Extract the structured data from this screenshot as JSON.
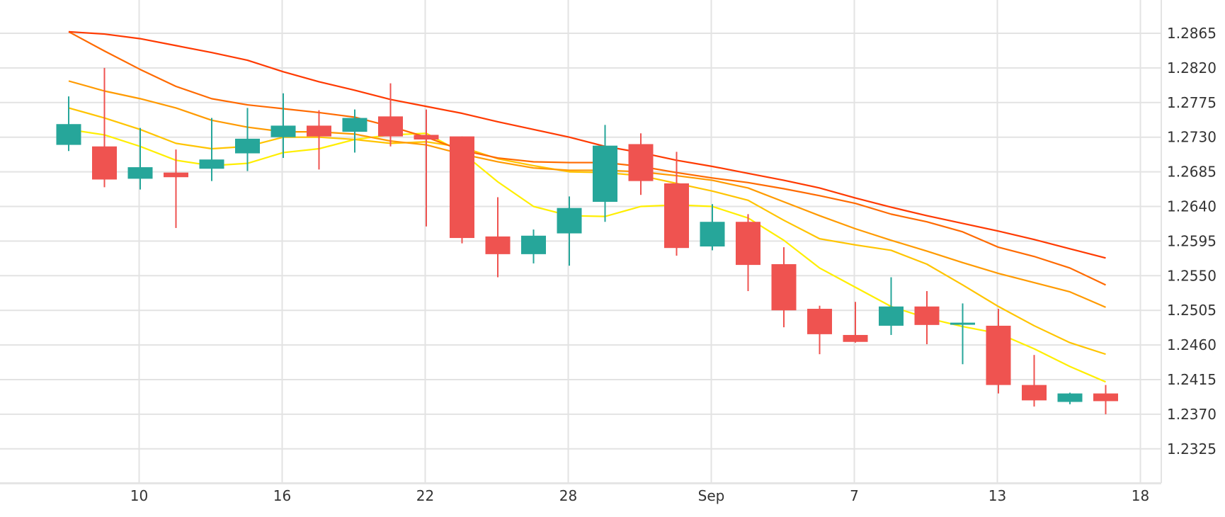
{
  "chart_data": {
    "type": "candlestick",
    "title": "",
    "xlabel": "",
    "ylabel": "",
    "ylim": [
      1.228,
      1.291
    ],
    "y_ticks": [
      1.2325,
      1.237,
      1.2415,
      1.246,
      1.2505,
      1.255,
      1.2595,
      1.264,
      1.2685,
      1.273,
      1.2775,
      1.282,
      1.2865
    ],
    "y_tick_labels": [
      "1.2325",
      "1.2370",
      "1.2415",
      "1.2460",
      "1.2505",
      "1.2550",
      "1.2595",
      "1.2640",
      "1.2685",
      "1.2730",
      "1.2775",
      "1.2820",
      "1.2865"
    ],
    "x_ticks": [
      {
        "index": 1,
        "label": "10"
      },
      {
        "index": 5,
        "label": "16"
      },
      {
        "index": 9,
        "label": "22"
      },
      {
        "index": 13,
        "label": "28"
      },
      {
        "index": 17,
        "label": "Sep"
      },
      {
        "index": 21,
        "label": "7"
      },
      {
        "index": 25,
        "label": "13"
      },
      {
        "index": 29,
        "label": "18"
      }
    ],
    "candles": [
      {
        "open": 1.272,
        "high": 1.2783,
        "low": 1.2712,
        "close": 1.2747
      },
      {
        "open": 1.2718,
        "high": 1.282,
        "low": 1.2665,
        "close": 1.2675
      },
      {
        "open": 1.2676,
        "high": 1.2742,
        "low": 1.2662,
        "close": 1.2691
      },
      {
        "open": 1.2684,
        "high": 1.2714,
        "low": 1.2612,
        "close": 1.2678
      },
      {
        "open": 1.2689,
        "high": 1.2755,
        "low": 1.2673,
        "close": 1.2701
      },
      {
        "open": 1.2709,
        "high": 1.2768,
        "low": 1.2686,
        "close": 1.2728
      },
      {
        "open": 1.273,
        "high": 1.2787,
        "low": 1.2703,
        "close": 1.2745
      },
      {
        "open": 1.2745,
        "high": 1.2765,
        "low": 1.2688,
        "close": 1.2731
      },
      {
        "open": 1.2737,
        "high": 1.2766,
        "low": 1.271,
        "close": 1.2755
      },
      {
        "open": 1.2757,
        "high": 1.28,
        "low": 1.2718,
        "close": 1.2731
      },
      {
        "open": 1.2733,
        "high": 1.2766,
        "low": 1.2614,
        "close": 1.2727
      },
      {
        "open": 1.2731,
        "high": 1.2731,
        "low": 1.2592,
        "close": 1.2599
      },
      {
        "open": 1.2601,
        "high": 1.2652,
        "low": 1.2548,
        "close": 1.2578
      },
      {
        "open": 1.2578,
        "high": 1.261,
        "low": 1.2566,
        "close": 1.2602
      },
      {
        "open": 1.2605,
        "high": 1.2653,
        "low": 1.2563,
        "close": 1.2638
      },
      {
        "open": 1.2646,
        "high": 1.2746,
        "low": 1.262,
        "close": 1.2719
      },
      {
        "open": 1.2721,
        "high": 1.2735,
        "low": 1.2655,
        "close": 1.2673
      },
      {
        "open": 1.267,
        "high": 1.2711,
        "low": 1.2576,
        "close": 1.2586
      },
      {
        "open": 1.2588,
        "high": 1.2643,
        "low": 1.2583,
        "close": 1.262
      },
      {
        "open": 1.262,
        "high": 1.263,
        "low": 1.253,
        "close": 1.2564
      },
      {
        "open": 1.2565,
        "high": 1.2587,
        "low": 1.2483,
        "close": 1.2505
      },
      {
        "open": 1.2507,
        "high": 1.2511,
        "low": 1.2448,
        "close": 1.2474
      },
      {
        "open": 1.2473,
        "high": 1.2516,
        "low": 1.2463,
        "close": 1.2464
      },
      {
        "open": 1.2485,
        "high": 1.2548,
        "low": 1.2473,
        "close": 1.251
      },
      {
        "open": 1.251,
        "high": 1.253,
        "low": 1.2461,
        "close": 1.2486
      },
      {
        "open": 1.2487,
        "high": 1.2514,
        "low": 1.2435,
        "close": 1.2489
      },
      {
        "open": 1.2485,
        "high": 1.2507,
        "low": 1.2397,
        "close": 1.2408
      },
      {
        "open": 1.2408,
        "high": 1.2447,
        "low": 1.238,
        "close": 1.2388
      },
      {
        "open": 1.2386,
        "high": 1.2398,
        "low": 1.2383,
        "close": 1.2397
      },
      {
        "open": 1.2397,
        "high": 1.2408,
        "low": 1.237,
        "close": 1.2387
      }
    ],
    "overlays": [
      {
        "color": "#ffee00",
        "values": [
          1.274,
          1.2733,
          1.2718,
          1.27,
          1.2693,
          1.2696,
          1.271,
          1.2715,
          1.2727,
          1.2733,
          1.2735,
          1.271,
          1.2672,
          1.264,
          1.2628,
          1.2627,
          1.264,
          1.2642,
          1.264,
          1.2625,
          1.2596,
          1.256,
          1.2535,
          1.251,
          1.2495,
          1.2484,
          1.2475,
          1.2455,
          1.2432,
          1.2412
        ]
      },
      {
        "color": "#ffc400",
        "values": [
          1.2768,
          1.2755,
          1.274,
          1.2722,
          1.2715,
          1.2718,
          1.273,
          1.273,
          1.2727,
          1.2722,
          1.2724,
          1.2717,
          1.2702,
          1.2693,
          1.2685,
          1.2684,
          1.268,
          1.267,
          1.266,
          1.2648,
          1.2622,
          1.2598,
          1.259,
          1.2583,
          1.2565,
          1.2538,
          1.251,
          1.2485,
          1.2463,
          1.2448
        ]
      },
      {
        "color": "#ff9a00",
        "values": [
          1.2803,
          1.279,
          1.278,
          1.2768,
          1.2752,
          1.2743,
          1.2737,
          1.2737,
          1.2734,
          1.2725,
          1.272,
          1.2708,
          1.2698,
          1.269,
          1.2687,
          1.2687,
          1.2685,
          1.268,
          1.2674,
          1.2664,
          1.2646,
          1.2628,
          1.2611,
          1.2596,
          1.2582,
          1.2567,
          1.2553,
          1.2541,
          1.2529,
          1.2509
        ]
      },
      {
        "color": "#ff6a00",
        "values": [
          1.2867,
          1.2842,
          1.2818,
          1.2796,
          1.278,
          1.2772,
          1.2767,
          1.2762,
          1.2756,
          1.2744,
          1.273,
          1.2713,
          1.2703,
          1.2698,
          1.2697,
          1.2697,
          1.2692,
          1.2684,
          1.2677,
          1.2671,
          1.2663,
          1.2654,
          1.2644,
          1.263,
          1.262,
          1.2607,
          1.2587,
          1.2575,
          1.256,
          1.2538
        ]
      },
      {
        "color": "#ff3a00",
        "values": [
          1.2867,
          1.2864,
          1.2858,
          1.2849,
          1.284,
          1.283,
          1.2815,
          1.2802,
          1.2791,
          1.2779,
          1.277,
          1.2761,
          1.275,
          1.274,
          1.273,
          1.2718,
          1.271,
          1.27,
          1.2692,
          1.2683,
          1.2674,
          1.2664,
          1.2651,
          1.2639,
          1.2628,
          1.2618,
          1.2608,
          1.2597,
          1.2585,
          1.2573
        ]
      }
    ],
    "colors": {
      "up": "#26a69a",
      "down": "#ef5350",
      "grid": "#e3e3e3",
      "text": "#333333"
    }
  }
}
